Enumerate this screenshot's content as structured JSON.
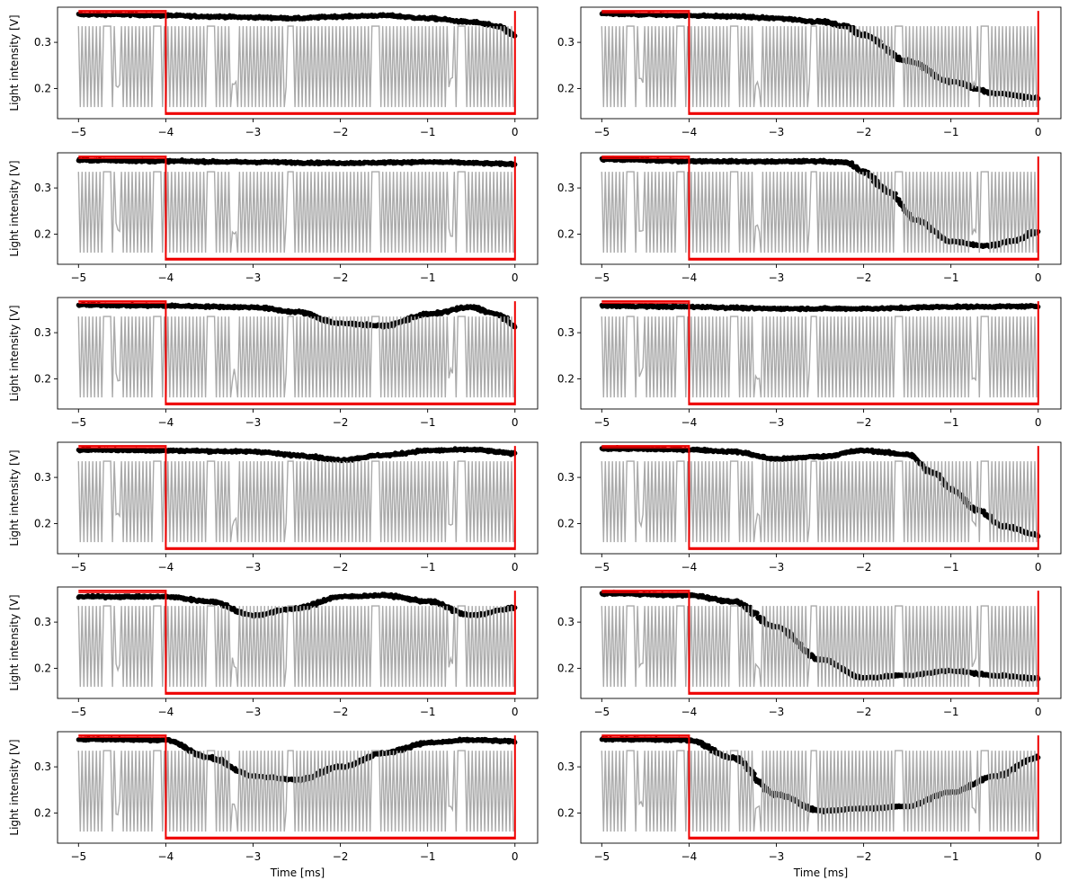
{
  "figure": {
    "ylabel": "Light intensity [V]",
    "xlabel": "Time [ms]"
  },
  "chart_data": [
    {
      "type": "line",
      "panel": "row 1, left",
      "xlim": [
        -5.24,
        0.26
      ],
      "ylim": [
        0.135,
        0.376
      ],
      "xticks": [
        "−5",
        "−4",
        "−3",
        "−2",
        "−1",
        "0"
      ],
      "xtick_values": [
        -5,
        -4,
        -3,
        -2,
        -1,
        0
      ],
      "yticks": [
        "0.2",
        "0.3"
      ],
      "ytick_values": [
        0.2,
        0.3
      ],
      "ylabel": "Light intensity [V]",
      "xlabel": "",
      "series": [
        {
          "style": "scatter",
          "color": "#000000",
          "x": [
            -5,
            -4.5,
            -4,
            -3.5,
            -3,
            -2.5,
            -2,
            -1.5,
            -1,
            -0.5,
            -0.2,
            0
          ],
          "y": [
            0.36,
            0.36,
            0.358,
            0.356,
            0.354,
            0.352,
            0.356,
            0.358,
            0.352,
            0.344,
            0.335,
            0.315
          ]
        },
        {
          "style": "line",
          "color": "#aaaaaa",
          "y_range": [
            0.16,
            0.335
          ]
        },
        {
          "style": "line",
          "color": "#ee0000",
          "x": [
            -5,
            -4,
            -4,
            0,
            0
          ],
          "y": [
            0.368,
            0.368,
            0.145,
            0.145,
            0.368
          ]
        }
      ]
    },
    {
      "type": "line",
      "panel": "row 1, right",
      "xlim": [
        -5.24,
        0.26
      ],
      "ylim": [
        0.135,
        0.376
      ],
      "xticks": [
        "−5",
        "−4",
        "−3",
        "−2",
        "−1",
        "0"
      ],
      "xtick_values": [
        -5,
        -4,
        -3,
        -2,
        -1,
        0
      ],
      "yticks": [
        "0.2",
        "0.3"
      ],
      "ytick_values": [
        0.2,
        0.3
      ],
      "ylabel": "",
      "xlabel": "",
      "series": [
        {
          "style": "scatter",
          "color": "#000000",
          "x": [
            -5,
            -4.5,
            -4,
            -3.5,
            -3,
            -2.5,
            -2.2,
            -2,
            -1.5,
            -1,
            -0.5,
            0
          ],
          "y": [
            0.362,
            0.36,
            0.358,
            0.356,
            0.352,
            0.345,
            0.335,
            0.315,
            0.26,
            0.215,
            0.19,
            0.18
          ]
        },
        {
          "style": "line",
          "color": "#aaaaaa",
          "y_range": [
            0.16,
            0.335
          ]
        },
        {
          "style": "line",
          "color": "#ee0000",
          "x": [
            -5,
            -4,
            -4,
            0,
            0
          ],
          "y": [
            0.368,
            0.368,
            0.145,
            0.145,
            0.368
          ]
        }
      ]
    },
    {
      "type": "line",
      "panel": "row 2, left",
      "xlim": [
        -5.24,
        0.26
      ],
      "ylim": [
        0.135,
        0.376
      ],
      "xticks": [
        "−5",
        "−4",
        "−3",
        "−2",
        "−1",
        "0"
      ],
      "xtick_values": [
        -5,
        -4,
        -3,
        -2,
        -1,
        0
      ],
      "yticks": [
        "0.2",
        "0.3"
      ],
      "ytick_values": [
        0.2,
        0.3
      ],
      "ylabel": "Light intensity [V]",
      "xlabel": "",
      "series": [
        {
          "style": "scatter",
          "color": "#000000",
          "x": [
            -5,
            -4,
            -3,
            -2,
            -1,
            0
          ],
          "y": [
            0.36,
            0.358,
            0.356,
            0.354,
            0.356,
            0.352
          ]
        },
        {
          "style": "line",
          "color": "#aaaaaa",
          "y_range": [
            0.16,
            0.335
          ]
        },
        {
          "style": "line",
          "color": "#ee0000",
          "x": [
            -5,
            -4,
            -4,
            0,
            0
          ],
          "y": [
            0.368,
            0.368,
            0.145,
            0.145,
            0.368
          ]
        }
      ]
    },
    {
      "type": "line",
      "panel": "row 2, right",
      "xlim": [
        -5.24,
        0.26
      ],
      "ylim": [
        0.135,
        0.376
      ],
      "xticks": [
        "−5",
        "−4",
        "−3",
        "−2",
        "−1",
        "0"
      ],
      "xtick_values": [
        -5,
        -4,
        -3,
        -2,
        -1,
        0
      ],
      "yticks": [
        "0.2",
        "0.3"
      ],
      "ytick_values": [
        0.2,
        0.3
      ],
      "ylabel": "",
      "xlabel": "",
      "series": [
        {
          "style": "scatter",
          "color": "#000000",
          "x": [
            -5,
            -4,
            -3,
            -2.5,
            -2.2,
            -2,
            -1.7,
            -1.4,
            -1,
            -0.6,
            -0.3,
            0
          ],
          "y": [
            0.362,
            0.358,
            0.357,
            0.358,
            0.355,
            0.335,
            0.29,
            0.23,
            0.185,
            0.175,
            0.185,
            0.205
          ]
        },
        {
          "style": "line",
          "color": "#aaaaaa",
          "y_range": [
            0.16,
            0.335
          ]
        },
        {
          "style": "line",
          "color": "#ee0000",
          "x": [
            -5,
            -4,
            -4,
            0,
            0
          ],
          "y": [
            0.368,
            0.368,
            0.145,
            0.145,
            0.368
          ]
        }
      ]
    },
    {
      "type": "line",
      "panel": "row 3, left",
      "xlim": [
        -5.24,
        0.26
      ],
      "ylim": [
        0.135,
        0.376
      ],
      "xticks": [
        "−5",
        "−4",
        "−3",
        "−2",
        "−1",
        "0"
      ],
      "xtick_values": [
        -5,
        -4,
        -3,
        -2,
        -1,
        0
      ],
      "yticks": [
        "0.2",
        "0.3"
      ],
      "ytick_values": [
        0.2,
        0.3
      ],
      "ylabel": "Light intensity [V]",
      "xlabel": "",
      "series": [
        {
          "style": "scatter",
          "color": "#000000",
          "x": [
            -5,
            -4,
            -3,
            -2.5,
            -2,
            -1.5,
            -1,
            -0.5,
            -0.2,
            0
          ],
          "y": [
            0.36,
            0.358,
            0.355,
            0.345,
            0.32,
            0.315,
            0.34,
            0.355,
            0.34,
            0.315
          ]
        },
        {
          "style": "line",
          "color": "#aaaaaa",
          "y_range": [
            0.16,
            0.335
          ]
        },
        {
          "style": "line",
          "color": "#ee0000",
          "x": [
            -5,
            -4,
            -4,
            0,
            0
          ],
          "y": [
            0.368,
            0.368,
            0.145,
            0.145,
            0.368
          ]
        }
      ]
    },
    {
      "type": "line",
      "panel": "row 3, right",
      "xlim": [
        -5.24,
        0.26
      ],
      "ylim": [
        0.135,
        0.376
      ],
      "xticks": [
        "−5",
        "−4",
        "−3",
        "−2",
        "−1",
        "0"
      ],
      "xtick_values": [
        -5,
        -4,
        -3,
        -2,
        -1,
        0
      ],
      "yticks": [
        "0.2",
        "0.3"
      ],
      "ytick_values": [
        0.2,
        0.3
      ],
      "ylabel": "",
      "xlabel": "",
      "series": [
        {
          "style": "scatter",
          "color": "#000000",
          "x": [
            -5,
            -4,
            -3,
            -2,
            -1,
            0
          ],
          "y": [
            0.358,
            0.356,
            0.352,
            0.352,
            0.356,
            0.357
          ]
        },
        {
          "style": "line",
          "color": "#aaaaaa",
          "y_range": [
            0.16,
            0.335
          ]
        },
        {
          "style": "line",
          "color": "#ee0000",
          "x": [
            -5,
            -4,
            -4,
            0,
            0
          ],
          "y": [
            0.368,
            0.368,
            0.145,
            0.145,
            0.368
          ]
        }
      ]
    },
    {
      "type": "line",
      "panel": "row 4, left",
      "xlim": [
        -5.24,
        0.26
      ],
      "ylim": [
        0.135,
        0.376
      ],
      "xticks": [
        "−5",
        "−4",
        "−3",
        "−2",
        "−1",
        "0"
      ],
      "xtick_values": [
        -5,
        -4,
        -3,
        -2,
        -1,
        0
      ],
      "yticks": [
        "0.2",
        "0.3"
      ],
      "ytick_values": [
        0.2,
        0.3
      ],
      "ylabel": "Light intensity [V]",
      "xlabel": "",
      "series": [
        {
          "style": "scatter",
          "color": "#000000",
          "x": [
            -5,
            -4,
            -3,
            -2.5,
            -2,
            -1.5,
            -1,
            -0.5,
            0
          ],
          "y": [
            0.36,
            0.358,
            0.356,
            0.348,
            0.338,
            0.348,
            0.358,
            0.36,
            0.352
          ]
        },
        {
          "style": "line",
          "color": "#aaaaaa",
          "y_range": [
            0.16,
            0.335
          ]
        },
        {
          "style": "line",
          "color": "#ee0000",
          "x": [
            -5,
            -4,
            -4,
            0,
            0
          ],
          "y": [
            0.368,
            0.368,
            0.145,
            0.145,
            0.368
          ]
        }
      ]
    },
    {
      "type": "line",
      "panel": "row 4, right",
      "xlim": [
        -5.24,
        0.26
      ],
      "ylim": [
        0.135,
        0.376
      ],
      "xticks": [
        "−5",
        "−4",
        "−3",
        "−2",
        "−1",
        "0"
      ],
      "xtick_values": [
        -5,
        -4,
        -3,
        -2,
        -1,
        0
      ],
      "yticks": [
        "0.2",
        "0.3"
      ],
      "ytick_values": [
        0.2,
        0.3
      ],
      "ylabel": "",
      "xlabel": "",
      "series": [
        {
          "style": "scatter",
          "color": "#000000",
          "x": [
            -5,
            -4,
            -3.5,
            -3,
            -2.5,
            -2,
            -1.5,
            -1.2,
            -1,
            -0.7,
            -0.4,
            0
          ],
          "y": [
            0.362,
            0.36,
            0.356,
            0.34,
            0.345,
            0.358,
            0.35,
            0.31,
            0.275,
            0.23,
            0.195,
            0.175
          ]
        },
        {
          "style": "line",
          "color": "#aaaaaa",
          "y_range": [
            0.16,
            0.335
          ]
        },
        {
          "style": "line",
          "color": "#ee0000",
          "x": [
            -5,
            -4,
            -4,
            0,
            0
          ],
          "y": [
            0.368,
            0.368,
            0.145,
            0.145,
            0.368
          ]
        }
      ]
    },
    {
      "type": "line",
      "panel": "row 5, left",
      "xlim": [
        -5.24,
        0.26
      ],
      "ylim": [
        0.135,
        0.376
      ],
      "xticks": [
        "−5",
        "−4",
        "−3",
        "−2",
        "−1",
        "0"
      ],
      "xtick_values": [
        -5,
        -4,
        -3,
        -2,
        -1,
        0
      ],
      "yticks": [
        "0.2",
        "0.3"
      ],
      "ytick_values": [
        0.2,
        0.3
      ],
      "ylabel": "Light intensity [V]",
      "xlabel": "",
      "series": [
        {
          "style": "scatter",
          "color": "#000000",
          "x": [
            -5,
            -4,
            -3.5,
            -3,
            -2.5,
            -2,
            -1.5,
            -1,
            -0.5,
            0
          ],
          "y": [
            0.355,
            0.355,
            0.345,
            0.315,
            0.33,
            0.355,
            0.358,
            0.345,
            0.315,
            0.33
          ]
        },
        {
          "style": "line",
          "color": "#aaaaaa",
          "y_range": [
            0.16,
            0.335
          ]
        },
        {
          "style": "line",
          "color": "#ee0000",
          "x": [
            -5,
            -4,
            -4,
            0,
            0
          ],
          "y": [
            0.368,
            0.368,
            0.145,
            0.145,
            0.368
          ]
        }
      ]
    },
    {
      "type": "line",
      "panel": "row 5, right",
      "xlim": [
        -5.24,
        0.26
      ],
      "ylim": [
        0.135,
        0.376
      ],
      "xticks": [
        "−5",
        "−4",
        "−3",
        "−2",
        "−1",
        "0"
      ],
      "xtick_values": [
        -5,
        -4,
        -3,
        -2,
        -1,
        0
      ],
      "yticks": [
        "0.2",
        "0.3"
      ],
      "ytick_values": [
        0.2,
        0.3
      ],
      "ylabel": "",
      "xlabel": "",
      "series": [
        {
          "style": "scatter",
          "color": "#000000",
          "x": [
            -5,
            -4,
            -3.5,
            -3,
            -2.5,
            -2,
            -1.5,
            -1,
            -0.5,
            0
          ],
          "y": [
            0.362,
            0.358,
            0.345,
            0.29,
            0.22,
            0.18,
            0.185,
            0.195,
            0.185,
            0.178
          ]
        },
        {
          "style": "line",
          "color": "#aaaaaa",
          "y_range": [
            0.16,
            0.335
          ]
        },
        {
          "style": "line",
          "color": "#ee0000",
          "x": [
            -5,
            -4,
            -4,
            0,
            0
          ],
          "y": [
            0.368,
            0.368,
            0.145,
            0.145,
            0.368
          ]
        }
      ]
    },
    {
      "type": "line",
      "panel": "row 6, left",
      "xlim": [
        -5.24,
        0.26
      ],
      "ylim": [
        0.135,
        0.376
      ],
      "xticks": [
        "−5",
        "−4",
        "−3",
        "−2",
        "−1",
        "0"
      ],
      "xtick_values": [
        -5,
        -4,
        -3,
        -2,
        -1,
        0
      ],
      "yticks": [
        "0.2",
        "0.3"
      ],
      "ytick_values": [
        0.2,
        0.3
      ],
      "ylabel": "Light intensity [V]",
      "xlabel": "Time [ms]",
      "series": [
        {
          "style": "scatter",
          "color": "#000000",
          "x": [
            -5,
            -4,
            -3.5,
            -3,
            -2.5,
            -2,
            -1.5,
            -1,
            -0.5,
            0
          ],
          "y": [
            0.36,
            0.358,
            0.32,
            0.28,
            0.272,
            0.3,
            0.33,
            0.352,
            0.358,
            0.355
          ]
        },
        {
          "style": "line",
          "color": "#aaaaaa",
          "y_range": [
            0.16,
            0.335
          ]
        },
        {
          "style": "line",
          "color": "#ee0000",
          "x": [
            -5,
            -4,
            -4,
            0,
            0
          ],
          "y": [
            0.368,
            0.368,
            0.145,
            0.145,
            0.368
          ]
        }
      ]
    },
    {
      "type": "line",
      "panel": "row 6, right",
      "xlim": [
        -5.24,
        0.26
      ],
      "ylim": [
        0.135,
        0.376
      ],
      "xticks": [
        "−5",
        "−4",
        "−3",
        "−2",
        "−1",
        "0"
      ],
      "xtick_values": [
        -5,
        -4,
        -3,
        -2,
        -1,
        0
      ],
      "yticks": [
        "0.2",
        "0.3"
      ],
      "ytick_values": [
        0.2,
        0.3
      ],
      "ylabel": "",
      "xlabel": "Time [ms]",
      "series": [
        {
          "style": "scatter",
          "color": "#000000",
          "x": [
            -5,
            -4,
            -3.5,
            -3,
            -2.5,
            -2,
            -1.5,
            -1,
            -0.5,
            0
          ],
          "y": [
            0.36,
            0.358,
            0.32,
            0.24,
            0.205,
            0.21,
            0.215,
            0.245,
            0.28,
            0.32
          ]
        },
        {
          "style": "line",
          "color": "#aaaaaa",
          "y_range": [
            0.16,
            0.335
          ]
        },
        {
          "style": "line",
          "color": "#ee0000",
          "x": [
            -5,
            -4,
            -4,
            0,
            0
          ],
          "y": [
            0.368,
            0.368,
            0.145,
            0.145,
            0.368
          ]
        }
      ]
    }
  ]
}
